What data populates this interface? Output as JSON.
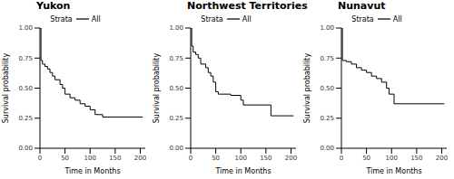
{
  "chart_data": [
    {
      "type": "line",
      "title": "Yukon",
      "legend_title": "Strata",
      "legend": "top",
      "line_style": "step",
      "x_label": "Time in Months",
      "y_label": "Survival probability",
      "x": [
        0,
        2,
        5,
        10,
        15,
        20,
        25,
        30,
        40,
        45,
        50,
        60,
        70,
        80,
        90,
        100,
        110,
        125,
        205
      ],
      "series": [
        {
          "name": "All",
          "color": "#000000",
          "values": [
            1.0,
            0.73,
            0.7,
            0.68,
            0.66,
            0.63,
            0.6,
            0.57,
            0.53,
            0.5,
            0.45,
            0.42,
            0.4,
            0.37,
            0.35,
            0.32,
            0.28,
            0.26,
            0.26
          ]
        }
      ],
      "xlim": [
        0,
        210
      ],
      "xticks": [
        0,
        50,
        100,
        150,
        200
      ],
      "ylim": [
        0,
        1
      ],
      "yticks": [
        {
          "value": 0,
          "label": "0.00"
        },
        {
          "value": 0.25,
          "label": "0.25"
        },
        {
          "value": 0.5,
          "label": "0.50"
        },
        {
          "value": 0.75,
          "label": "0.75"
        },
        {
          "value": 1,
          "label": "1.00"
        }
      ]
    },
    {
      "type": "line",
      "title": "Northwest Territories",
      "legend_title": "Strata",
      "legend": "top",
      "line_style": "step",
      "x_label": "Time in Months",
      "y_label": "Survival probability",
      "x": [
        0,
        2,
        5,
        10,
        15,
        20,
        30,
        35,
        40,
        45,
        50,
        55,
        80,
        100,
        105,
        160,
        205
      ],
      "series": [
        {
          "name": "All",
          "color": "#000000",
          "values": [
            1.0,
            0.85,
            0.8,
            0.78,
            0.75,
            0.7,
            0.67,
            0.63,
            0.6,
            0.55,
            0.47,
            0.45,
            0.44,
            0.4,
            0.36,
            0.27,
            0.27
          ]
        }
      ],
      "xlim": [
        0,
        210
      ],
      "xticks": [
        0,
        50,
        100,
        150,
        200
      ],
      "ylim": [
        0,
        1
      ],
      "yticks": [
        {
          "value": 0,
          "label": "0.00"
        },
        {
          "value": 0.25,
          "label": "0.25"
        },
        {
          "value": 0.5,
          "label": "0.50"
        },
        {
          "value": 0.75,
          "label": "0.75"
        },
        {
          "value": 1,
          "label": "1.00"
        }
      ]
    },
    {
      "type": "line",
      "title": "Nunavut",
      "legend_title": "Strata",
      "legend": "top",
      "line_style": "step",
      "x_label": "Time in Months",
      "y_label": "Survival probability",
      "x": [
        0,
        2,
        10,
        20,
        30,
        40,
        50,
        60,
        70,
        80,
        90,
        95,
        105,
        205
      ],
      "series": [
        {
          "name": "All",
          "color": "#000000",
          "values": [
            1.0,
            0.73,
            0.72,
            0.7,
            0.67,
            0.65,
            0.63,
            0.6,
            0.58,
            0.55,
            0.5,
            0.45,
            0.37,
            0.37
          ]
        }
      ],
      "xlim": [
        0,
        210
      ],
      "xticks": [
        0,
        50,
        100,
        150,
        200
      ],
      "ylim": [
        0,
        1
      ],
      "yticks": [
        {
          "value": 0,
          "label": "0.00"
        },
        {
          "value": 0.25,
          "label": "0.25"
        },
        {
          "value": 0.5,
          "label": "0.50"
        },
        {
          "value": 0.75,
          "label": "0.75"
        },
        {
          "value": 1,
          "label": "1.00"
        }
      ]
    }
  ]
}
